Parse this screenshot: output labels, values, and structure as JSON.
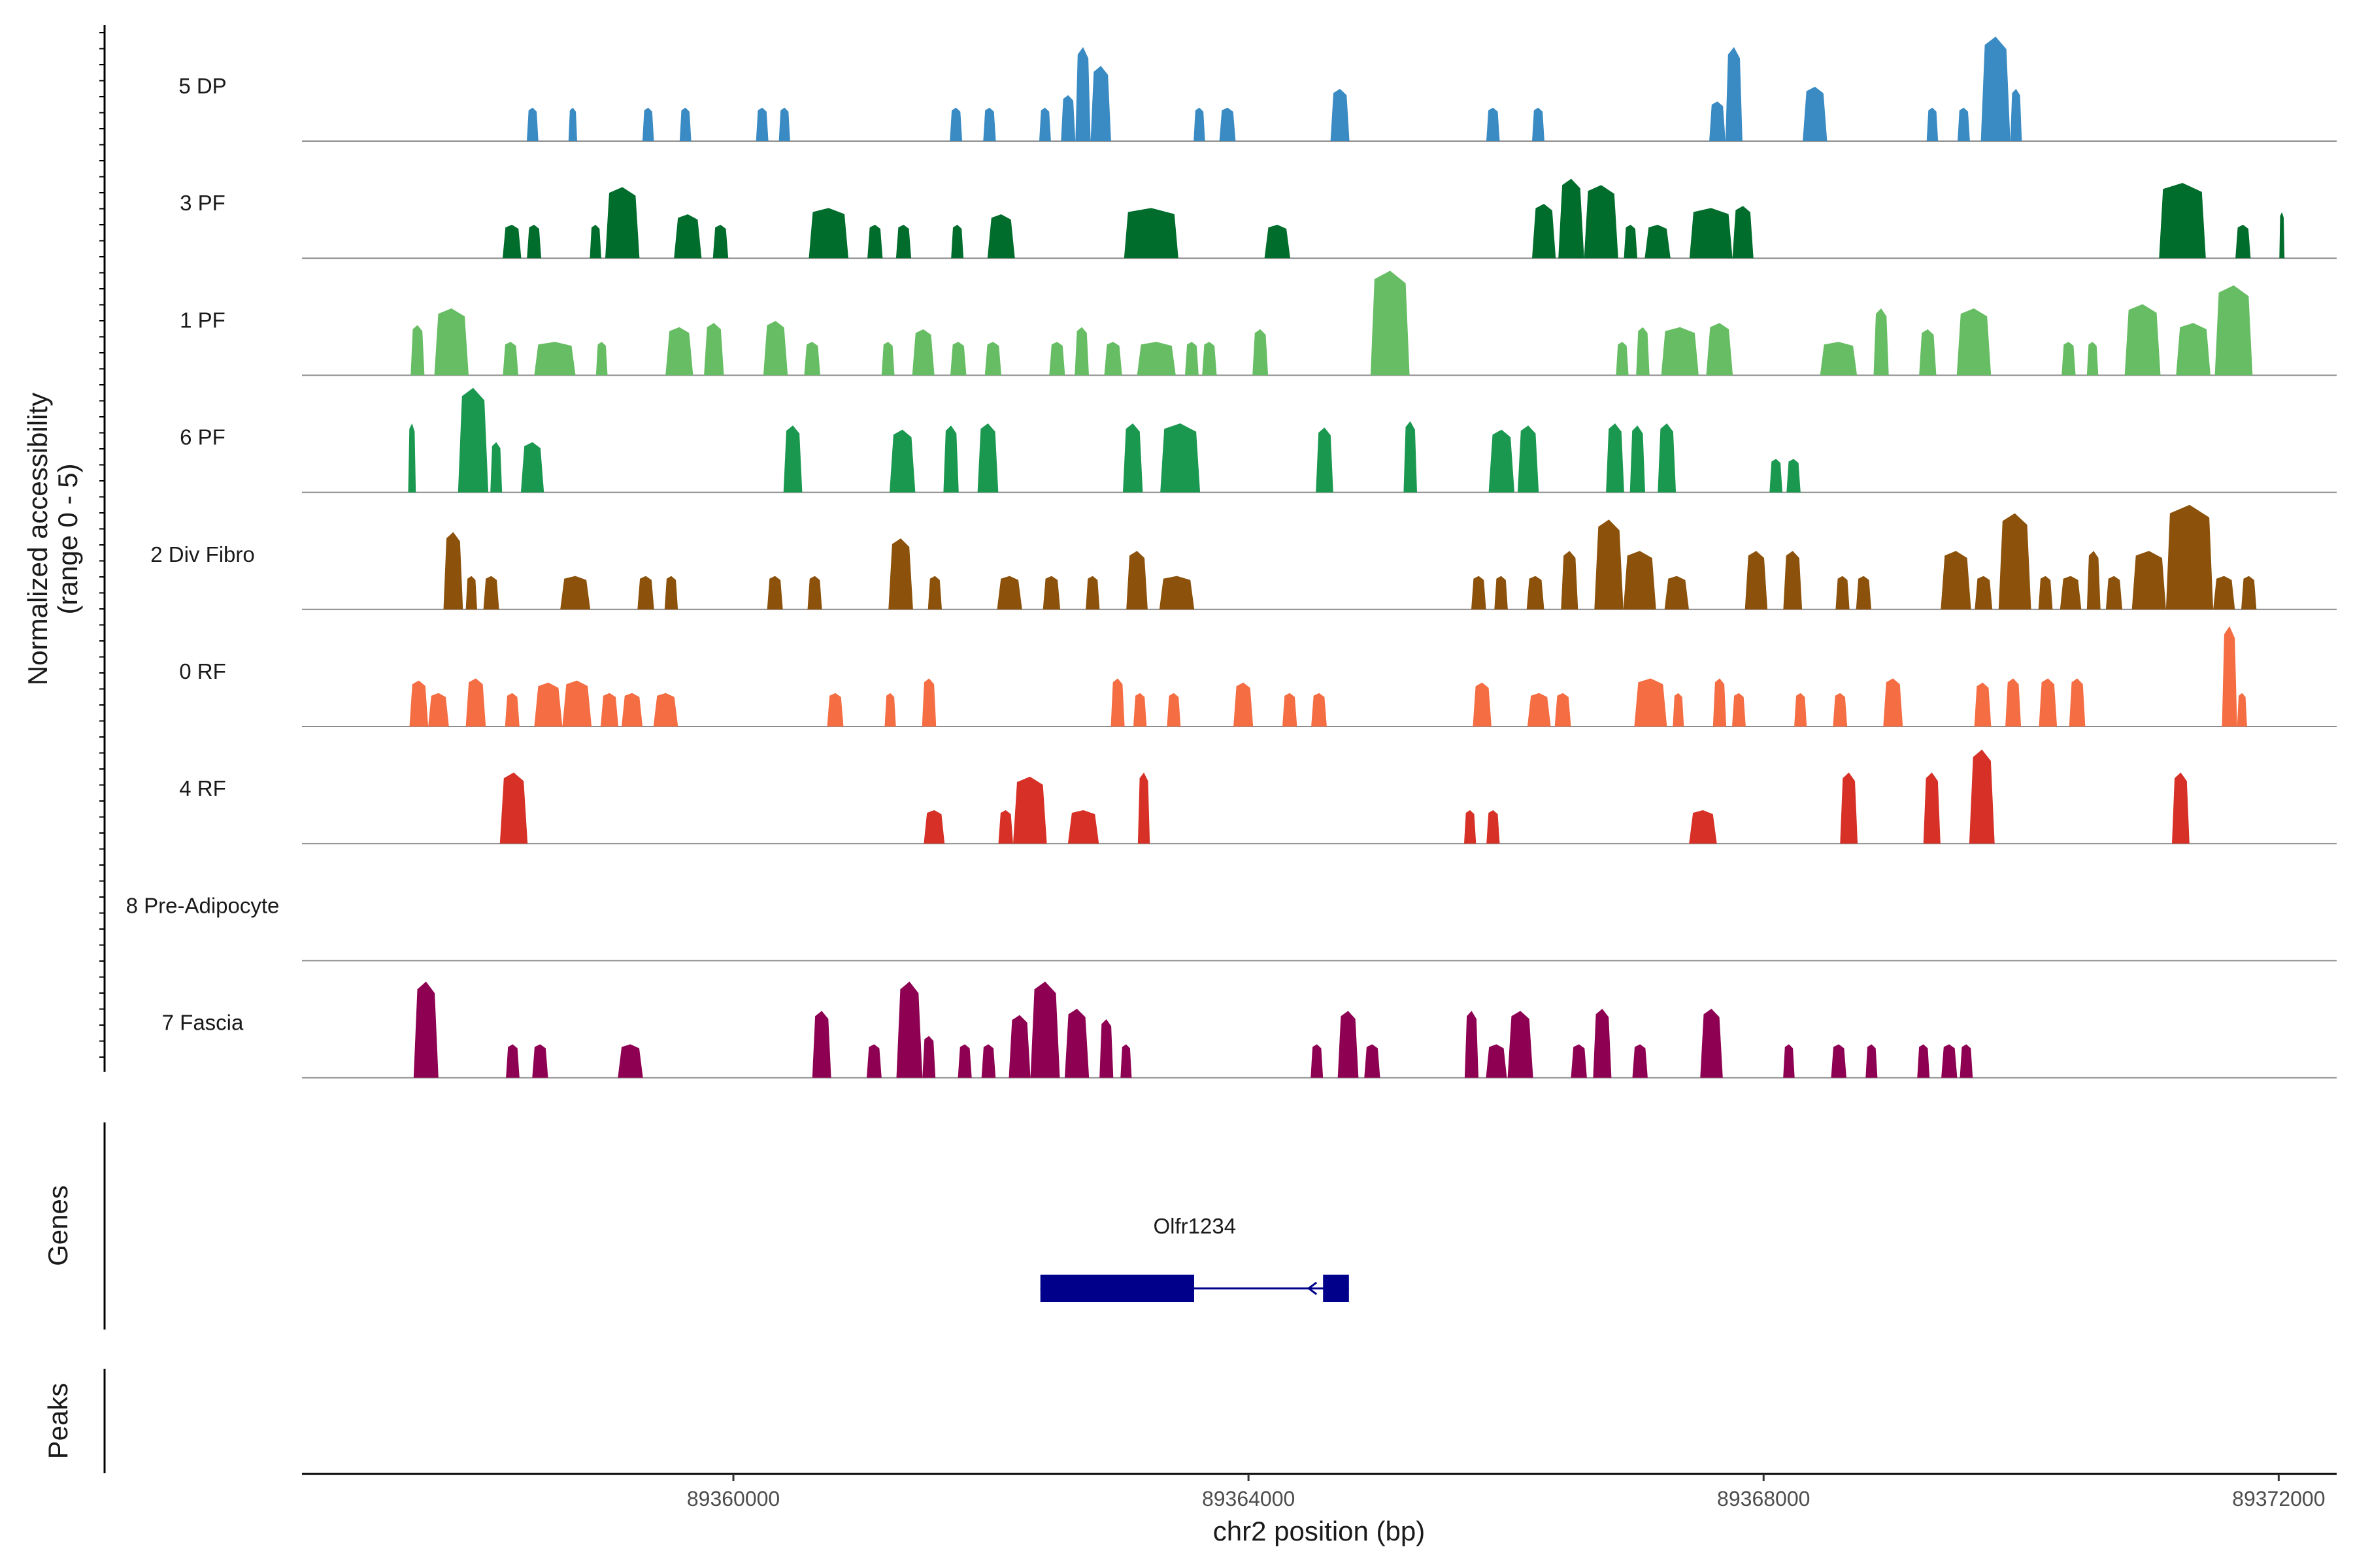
{
  "chart_data": {
    "type": "coverage",
    "ylabel_line1": "Normalized accessibility",
    "ylabel_line2": "(range 0 - 5)",
    "xlabel": "chr2 position (bp)",
    "xlim": [
      89356650,
      89372450
    ],
    "ylim": [
      0,
      5
    ],
    "xticks": [
      89360000,
      89364000,
      89368000,
      89372000
    ],
    "tracks": [
      {
        "name": "5 DP",
        "color": "#3A8BC3",
        "peaks": [
          [
            89358396,
            89358486,
            1.6
          ],
          [
            89358720,
            89358787,
            1.6
          ],
          [
            89359294,
            89359383,
            1.6
          ],
          [
            89359583,
            89359673,
            1.6
          ],
          [
            89360176,
            89360272,
            1.6
          ],
          [
            89360353,
            89360441,
            1.6
          ],
          [
            89361681,
            89361777,
            1.6
          ],
          [
            89361940,
            89362038,
            1.6
          ],
          [
            89362375,
            89362466,
            1.6
          ],
          [
            89362544,
            89362656,
            2.2
          ],
          [
            89362656,
            89362774,
            4.5
          ],
          [
            89362774,
            89362933,
            3.6
          ],
          [
            89363574,
            89363663,
            1.6
          ],
          [
            89363774,
            89363900,
            1.6
          ],
          [
            89364637,
            89364784,
            2.5
          ],
          [
            89365847,
            89365951,
            1.6
          ],
          [
            89366202,
            89366298,
            1.6
          ],
          [
            89367578,
            89367704,
            1.9
          ],
          [
            89367704,
            89367836,
            4.5
          ],
          [
            89368304,
            89368493,
            2.6
          ],
          [
            89369266,
            89369355,
            1.6
          ],
          [
            89369506,
            89369602,
            1.6
          ],
          [
            89369687,
            89369916,
            5.0
          ],
          [
            89369916,
            89370005,
            2.5
          ]
        ]
      },
      {
        "name": "3 PF",
        "color": "#006D2C",
        "peaks": [
          [
            89358208,
            89358353,
            1.6
          ],
          [
            89358397,
            89358508,
            1.6
          ],
          [
            89358885,
            89358974,
            1.6
          ],
          [
            89359005,
            89359271,
            3.4
          ],
          [
            89359539,
            89359753,
            2.1
          ],
          [
            89359841,
            89359960,
            1.6
          ],
          [
            89360586,
            89360893,
            2.4
          ],
          [
            89361041,
            89361159,
            1.6
          ],
          [
            89361263,
            89361381,
            1.6
          ],
          [
            89361691,
            89361787,
            1.6
          ],
          [
            89361973,
            89362186,
            2.1
          ],
          [
            89363034,
            89363455,
            2.4
          ],
          [
            89364124,
            89364324,
            1.6
          ],
          [
            89366202,
            89366386,
            2.6
          ],
          [
            89366406,
            89366606,
            3.8
          ],
          [
            89366606,
            89366871,
            3.5
          ],
          [
            89366915,
            89367019,
            1.6
          ],
          [
            89367077,
            89367277,
            1.6
          ],
          [
            89367425,
            89367758,
            2.4
          ],
          [
            89367758,
            89367921,
            2.5
          ],
          [
            89371071,
            89371434,
            3.6
          ],
          [
            89371664,
            89371782,
            1.6
          ],
          [
            89372005,
            89372045,
            2.2
          ]
        ]
      },
      {
        "name": "1 PF",
        "color": "#66BD63",
        "peaks": [
          [
            89357494,
            89357601,
            2.4
          ],
          [
            89357678,
            89357944,
            3.2
          ],
          [
            89358210,
            89358330,
            1.6
          ],
          [
            89358454,
            89358774,
            1.6
          ],
          [
            89358933,
            89359023,
            1.6
          ],
          [
            89359473,
            89359687,
            2.3
          ],
          [
            89359772,
            89359926,
            2.5
          ],
          [
            89360233,
            89360422,
            2.6
          ],
          [
            89360550,
            89360675,
            1.6
          ],
          [
            89361151,
            89361251,
            1.6
          ],
          [
            89361389,
            89361561,
            2.2
          ],
          [
            89361685,
            89361809,
            1.6
          ],
          [
            89361953,
            89362081,
            1.6
          ],
          [
            89362453,
            89362575,
            1.6
          ],
          [
            89362651,
            89362761,
            2.3
          ],
          [
            89362880,
            89363018,
            1.6
          ],
          [
            89363135,
            89363435,
            1.6
          ],
          [
            89363507,
            89363613,
            1.6
          ],
          [
            89363640,
            89363753,
            1.6
          ],
          [
            89364031,
            89364152,
            2.2
          ],
          [
            89364948,
            89365251,
            5.0
          ],
          [
            89366854,
            89366951,
            1.6
          ],
          [
            89367010,
            89367114,
            2.3
          ],
          [
            89367205,
            89367496,
            2.3
          ],
          [
            89367554,
            89367761,
            2.5
          ],
          [
            89368439,
            89368725,
            1.6
          ],
          [
            89368854,
            89368972,
            3.2
          ],
          [
            89369208,
            89369341,
            2.2
          ],
          [
            89369500,
            89369766,
            3.2
          ],
          [
            89370314,
            89370423,
            1.6
          ],
          [
            89370510,
            89370599,
            1.6
          ],
          [
            89370804,
            89371082,
            3.4
          ],
          [
            89371203,
            89371470,
            2.5
          ],
          [
            89371504,
            89371797,
            4.3
          ]
        ]
      },
      {
        "name": "6 PF",
        "color": "#1A9850",
        "peaks": [
          [
            89357475,
            89357534,
            3.3
          ],
          [
            89357862,
            89358097,
            5.0
          ],
          [
            89358113,
            89358204,
            2.4
          ],
          [
            89358350,
            89358529,
            2.4
          ],
          [
            89360389,
            89360535,
            3.2
          ],
          [
            89361213,
            89361413,
            3.0
          ],
          [
            89361631,
            89361750,
            3.2
          ],
          [
            89361896,
            89362057,
            3.3
          ],
          [
            89363025,
            89363179,
            3.3
          ],
          [
            89363315,
            89363624,
            3.3
          ],
          [
            89364523,
            89364658,
            3.1
          ],
          [
            89365204,
            89365309,
            3.4
          ],
          [
            89365865,
            89366065,
            3.0
          ],
          [
            89366090,
            89366254,
            3.2
          ],
          [
            89366776,
            89366917,
            3.3
          ],
          [
            89366962,
            89367080,
            3.2
          ],
          [
            89367178,
            89367319,
            3.3
          ],
          [
            89368046,
            89368146,
            1.6
          ],
          [
            89368178,
            89368287,
            1.6
          ]
        ]
      },
      {
        "name": "2 Div Fibro",
        "color": "#8C510A",
        "peaks": [
          [
            89357749,
            89357900,
            3.7
          ],
          [
            89357922,
            89358010,
            1.6
          ],
          [
            89358059,
            89358181,
            1.6
          ],
          [
            89358656,
            89358889,
            1.6
          ],
          [
            89359255,
            89359384,
            1.6
          ],
          [
            89359466,
            89359569,
            1.6
          ],
          [
            89360262,
            89360384,
            1.6
          ],
          [
            89360576,
            89360688,
            1.6
          ],
          [
            89361204,
            89361395,
            3.4
          ],
          [
            89361511,
            89361619,
            1.6
          ],
          [
            89362048,
            89362242,
            1.6
          ],
          [
            89362404,
            89362538,
            1.6
          ],
          [
            89362736,
            89362844,
            1.6
          ],
          [
            89363051,
            89363217,
            2.8
          ],
          [
            89363308,
            89363579,
            1.6
          ],
          [
            89365730,
            89365845,
            1.6
          ],
          [
            89365909,
            89366014,
            1.6
          ],
          [
            89366160,
            89366296,
            1.6
          ],
          [
            89366427,
            89366559,
            2.8
          ],
          [
            89366686,
            89366911,
            4.3
          ],
          [
            89366911,
            89367165,
            2.8
          ],
          [
            89367231,
            89367420,
            1.6
          ],
          [
            89367855,
            89368030,
            2.8
          ],
          [
            89368153,
            89368299,
            2.8
          ],
          [
            89368559,
            89368667,
            1.6
          ],
          [
            89368718,
            89368836,
            1.6
          ],
          [
            89369376,
            89369611,
            2.8
          ],
          [
            89369640,
            89369776,
            1.6
          ],
          [
            89369825,
            89370077,
            4.6
          ],
          [
            89370134,
            89370244,
            1.6
          ],
          [
            89370302,
            89370467,
            1.6
          ],
          [
            89370510,
            89370616,
            2.8
          ],
          [
            89370658,
            89370785,
            1.6
          ],
          [
            89370860,
            89371125,
            2.8
          ],
          [
            89371125,
            89371491,
            5.0
          ],
          [
            89371491,
            89371660,
            1.6
          ],
          [
            89371709,
            89371827,
            1.6
          ]
        ]
      },
      {
        "name": "0 RF",
        "color": "#F46D43",
        "peaks": [
          [
            89357485,
            89357630,
            2.2
          ],
          [
            89357630,
            89357791,
            1.6
          ],
          [
            89357922,
            89358077,
            2.3
          ],
          [
            89358227,
            89358339,
            1.6
          ],
          [
            89358454,
            89358672,
            2.1
          ],
          [
            89358672,
            89358899,
            2.2
          ],
          [
            89358969,
            89359107,
            1.6
          ],
          [
            89359132,
            89359295,
            1.6
          ],
          [
            89359379,
            89359570,
            1.6
          ],
          [
            89360728,
            89360855,
            1.6
          ],
          [
            89361175,
            89361262,
            1.6
          ],
          [
            89361465,
            89361575,
            2.3
          ],
          [
            89362931,
            89363038,
            2.3
          ],
          [
            89363106,
            89363209,
            1.6
          ],
          [
            89363367,
            89363473,
            1.6
          ],
          [
            89363883,
            89364036,
            2.1
          ],
          [
            89364263,
            89364377,
            1.6
          ],
          [
            89364487,
            89364608,
            1.6
          ],
          [
            89365742,
            89365887,
            2.1
          ],
          [
            89366166,
            89366347,
            1.6
          ],
          [
            89366378,
            89366504,
            1.6
          ],
          [
            89366996,
            89367249,
            2.3
          ],
          [
            89367295,
            89367381,
            1.6
          ],
          [
            89367607,
            89367710,
            2.3
          ],
          [
            89367755,
            89367861,
            1.6
          ],
          [
            89368238,
            89368335,
            1.6
          ],
          [
            89368539,
            89368649,
            1.6
          ],
          [
            89368929,
            89369081,
            2.3
          ],
          [
            89369636,
            89369767,
            2.1
          ],
          [
            89369877,
            89369999,
            2.3
          ],
          [
            89370138,
            89370278,
            2.3
          ],
          [
            89370373,
            89370498,
            2.3
          ],
          [
            89371559,
            89371677,
            4.8
          ],
          [
            89371677,
            89371754,
            1.6
          ]
        ]
      },
      {
        "name": "4 RF",
        "color": "#D73027",
        "peaks": [
          [
            89358187,
            89358402,
            3.4
          ],
          [
            89361479,
            89361640,
            1.6
          ],
          [
            89362058,
            89362172,
            1.6
          ],
          [
            89362172,
            89362434,
            3.2
          ],
          [
            89362598,
            89362838,
            1.6
          ],
          [
            89363141,
            89363234,
            3.4
          ],
          [
            89365674,
            89365767,
            1.6
          ],
          [
            89365848,
            89365951,
            1.6
          ],
          [
            89367421,
            89367637,
            1.6
          ],
          [
            89368594,
            89368730,
            3.4
          ],
          [
            89369241,
            89369373,
            3.4
          ],
          [
            89369597,
            89369794,
            4.5
          ],
          [
            89371171,
            89371307,
            3.4
          ]
        ]
      },
      {
        "name": "8 Pre-Adipocyte",
        "color": "#F7B6D2",
        "peaks": []
      },
      {
        "name": "7 Fascia",
        "color": "#8E0152",
        "peaks": [
          [
            89357517,
            89357710,
            4.6
          ],
          [
            89358234,
            89358339,
            1.6
          ],
          [
            89358438,
            89358561,
            1.6
          ],
          [
            89359103,
            89359298,
            1.6
          ],
          [
            89360613,
            89360759,
            3.2
          ],
          [
            89361035,
            89361151,
            1.6
          ],
          [
            89361266,
            89361468,
            4.6
          ],
          [
            89361468,
            89361569,
            2.0
          ],
          [
            89361744,
            89361851,
            1.6
          ],
          [
            89361927,
            89362036,
            1.6
          ],
          [
            89362139,
            89362307,
            3.0
          ],
          [
            89362307,
            89362535,
            4.6
          ],
          [
            89362573,
            89362762,
            3.3
          ],
          [
            89362843,
            89362950,
            2.8
          ],
          [
            89363006,
            89363093,
            1.6
          ],
          [
            89364483,
            89364579,
            1.6
          ],
          [
            89364693,
            89364854,
            3.2
          ],
          [
            89364899,
            89365022,
            1.6
          ],
          [
            89365679,
            89365786,
            3.2
          ],
          [
            89365844,
            89366006,
            1.6
          ],
          [
            89366012,
            89366210,
            3.2
          ],
          [
            89366504,
            89366628,
            1.6
          ],
          [
            89366676,
            89366818,
            3.3
          ],
          [
            89366981,
            89367100,
            1.6
          ],
          [
            89367508,
            89367683,
            3.3
          ],
          [
            89368152,
            89368241,
            1.6
          ],
          [
            89368524,
            89368643,
            1.6
          ],
          [
            89368792,
            89368884,
            1.6
          ],
          [
            89369193,
            89369289,
            1.6
          ],
          [
            89369380,
            89369503,
            1.6
          ],
          [
            89369524,
            89369624,
            1.6
          ]
        ]
      }
    ],
    "genes_panel_label": "Genes",
    "peaks_panel_label": "Peaks",
    "gene": {
      "name": "Olfr1234",
      "start": 89362384,
      "end": 89364780,
      "strand": "-",
      "exons": [
        [
          89362384,
          89363578
        ],
        [
          89364579,
          89364780
        ]
      ],
      "color": "#00008B"
    }
  }
}
